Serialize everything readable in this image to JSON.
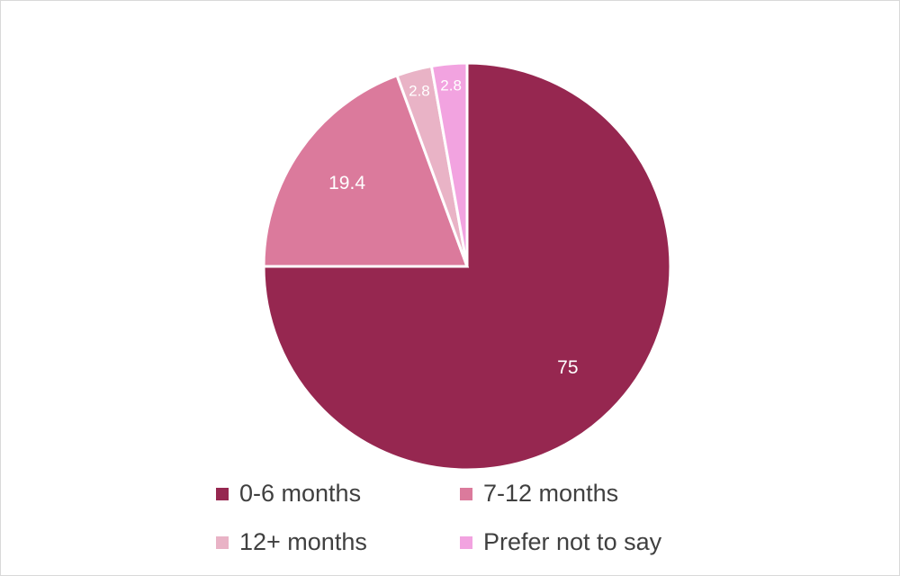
{
  "chart_data": {
    "type": "pie",
    "title": "",
    "categories": [
      "0-6 months",
      "7-12 months",
      "12+ months",
      "Prefer not to say"
    ],
    "values": [
      75,
      19.4,
      2.8,
      2.8
    ],
    "colors": [
      "#962750",
      "#db7a9c",
      "#e9b3c6",
      "#f2a3e0"
    ],
    "data_labels": [
      "75",
      "19.4",
      "2.8",
      "2.8"
    ],
    "legend_position": "bottom"
  },
  "legend": {
    "items": [
      {
        "label": "0-6 months",
        "color": "#962750"
      },
      {
        "label": "7-12 months",
        "color": "#db7a9c"
      },
      {
        "label": "12+ months",
        "color": "#e9b3c6"
      },
      {
        "label": "Prefer not to say",
        "color": "#f2a3e0"
      }
    ]
  }
}
